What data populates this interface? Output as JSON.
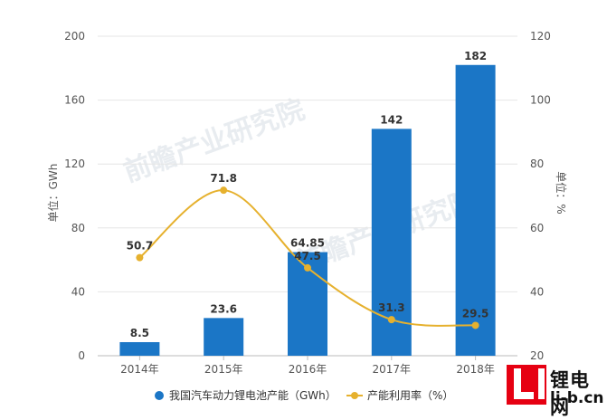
{
  "chart_data": {
    "type": "bar",
    "categories": [
      "2014年",
      "2015年",
      "2016年",
      "2017年",
      "2018年"
    ],
    "series": [
      {
        "name": "我国汽车动力锂电池产能（GWh）",
        "type": "bar",
        "axis": "left",
        "values": [
          8.5,
          23.6,
          64.85,
          142,
          182
        ],
        "labels": [
          "8.5",
          "23.6",
          "64.85",
          "142",
          "182"
        ],
        "color": "#1b76c6"
      },
      {
        "name": "产能利用率（%）",
        "type": "line",
        "axis": "right",
        "values": [
          50.7,
          71.8,
          47.5,
          31.3,
          29.5
        ],
        "labels": [
          "50.7",
          "71.8",
          "47.5",
          "31.3",
          "29.5"
        ],
        "color": "#e6b12e"
      }
    ],
    "ylabel": "单位：GWh",
    "y2label": "单位：%",
    "ylim": [
      0,
      200
    ],
    "y2lim": [
      20,
      120
    ],
    "yticks": [
      "0",
      "40",
      "80",
      "120",
      "160",
      "200"
    ],
    "y2ticks": [
      "20",
      "40",
      "60",
      "80",
      "100",
      "120"
    ],
    "grid": true,
    "legend": "bottom"
  },
  "watermark": {
    "text": "前瞻产业研究院"
  },
  "logo": {
    "cn": "锂电网",
    "en": "li-b.cn"
  }
}
